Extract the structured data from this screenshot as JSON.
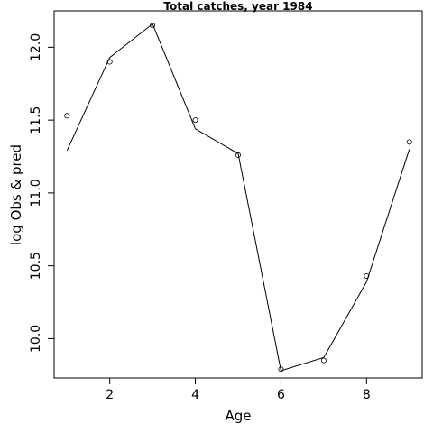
{
  "chart_data": {
    "type": "line",
    "title": "Total catches, year 1984",
    "xlabel": "Age",
    "ylabel": "log Obs & pred",
    "x": [
      1,
      2,
      3,
      4,
      5,
      6,
      7,
      8,
      9
    ],
    "series": [
      {
        "style": "points",
        "values": [
          11.53,
          11.9,
          12.15,
          11.5,
          11.26,
          9.79,
          9.85,
          10.43,
          11.35
        ]
      },
      {
        "style": "line",
        "values": [
          11.29,
          11.93,
          12.16,
          11.44,
          11.27,
          9.78,
          9.87,
          10.39,
          11.3
        ]
      }
    ],
    "xlim": [
      0.7,
      9.3
    ],
    "ylim": [
      9.73,
      12.25
    ],
    "xticks": [
      2,
      4,
      6,
      8
    ],
    "yticks": [
      10.0,
      10.5,
      11.0,
      11.5,
      12.0
    ],
    "xtick_labels": [
      "2",
      "4",
      "6",
      "8"
    ],
    "ytick_labels": [
      "10.0",
      "10.5",
      "11.0",
      "11.5",
      "12.0"
    ],
    "grid": false
  }
}
